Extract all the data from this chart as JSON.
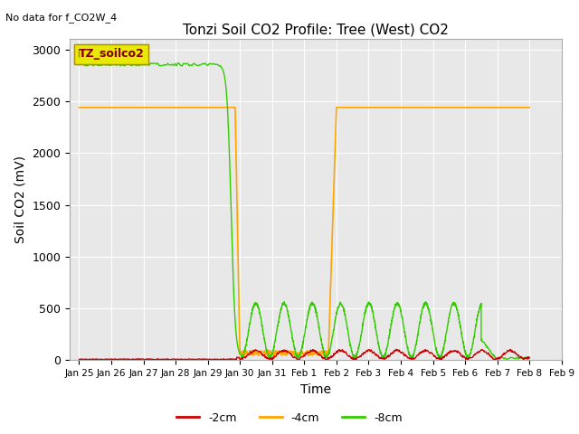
{
  "title": "Tonzi Soil CO2 Profile: Tree (West) CO2",
  "no_data_text": "No data for f_CO2W_4",
  "legend_box_label": "TZ_soilco2",
  "xlabel": "Time",
  "ylabel": "Soil CO2 (mV)",
  "ylim": [
    0,
    3100
  ],
  "bg_color": "#e8e8e8",
  "series": {
    "2cm": {
      "label": "-2cm",
      "color": "#cc0000"
    },
    "4cm": {
      "label": "-4cm",
      "color": "#ffa500"
    },
    "8cm": {
      "label": "-8cm",
      "color": "#33cc00"
    }
  },
  "xtick_labels": [
    "Jan 25",
    "Jan 26",
    "Jan 27",
    "Jan 28",
    "Jan 29",
    "Jan 30",
    "Jan 31",
    "Feb 1",
    "Feb 2",
    "Feb 3",
    "Feb 4",
    "Feb 5",
    "Feb 6",
    "Feb 7",
    "Feb 8",
    "Feb 9"
  ],
  "ytick_labels": [
    "0",
    "500",
    "1000",
    "1500",
    "2000",
    "2500",
    "3000"
  ]
}
